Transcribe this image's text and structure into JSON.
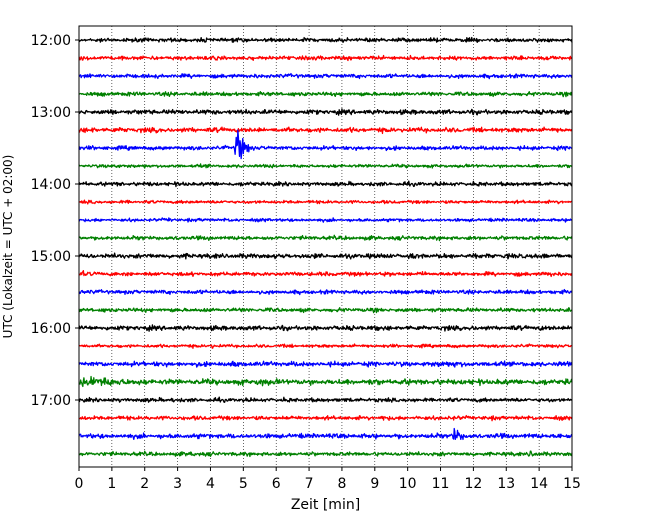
{
  "chart_data": {
    "type": "line",
    "title": "",
    "xlabel": "Zeit  [min]",
    "ylabel": "UTC (Lokalzeit = UTC + 02:00)",
    "xlim": [
      0,
      15
    ],
    "x_ticks": [
      "0",
      "1",
      "2",
      "3",
      "4",
      "5",
      "6",
      "7",
      "8",
      "9",
      "10",
      "11",
      "12",
      "13",
      "14",
      "15"
    ],
    "grid": "vertical dotted",
    "line_interval_minutes": 15,
    "y_ticks": [
      "12:00",
      "13:00",
      "14:00",
      "15:00",
      "16:00",
      "17:00"
    ],
    "color_cycle": [
      "#000000",
      "#ff0000",
      "#0000ff",
      "#008000"
    ],
    "series": [
      {
        "start": "12:00",
        "color": "#000000",
        "amplitude": 2.5,
        "events": []
      },
      {
        "start": "12:15",
        "color": "#ff0000",
        "amplitude": 2.5,
        "events": [
          {
            "at_min": 1.3,
            "duration_min": 0.3,
            "amp": 4
          }
        ]
      },
      {
        "start": "12:30",
        "color": "#0000ff",
        "amplitude": 2.5,
        "events": []
      },
      {
        "start": "12:45",
        "color": "#008000",
        "amplitude": 2.5,
        "events": []
      },
      {
        "start": "13:00",
        "color": "#000000",
        "amplitude": 3,
        "events": []
      },
      {
        "start": "13:15",
        "color": "#ff0000",
        "amplitude": 3,
        "events": [
          {
            "at_min": 0.4,
            "duration_min": 0.8,
            "amp": 4
          }
        ]
      },
      {
        "start": "13:30",
        "color": "#0000ff",
        "amplitude": 2.5,
        "events": [
          {
            "at_min": 4.8,
            "duration_min": 0.5,
            "amp": 30
          }
        ]
      },
      {
        "start": "13:45",
        "color": "#008000",
        "amplitude": 2,
        "events": [
          {
            "at_min": 1.1,
            "duration_min": 0.3,
            "amp": 6
          },
          {
            "at_min": 2.0,
            "duration_min": 0.4,
            "amp": 4
          }
        ]
      },
      {
        "start": "14:00",
        "color": "#000000",
        "amplitude": 2.5,
        "events": []
      },
      {
        "start": "14:15",
        "color": "#ff0000",
        "amplitude": 2,
        "events": [
          {
            "at_min": 7.1,
            "duration_min": 0.3,
            "amp": 3
          }
        ]
      },
      {
        "start": "14:30",
        "color": "#0000ff",
        "amplitude": 2,
        "events": [
          {
            "at_min": 2.7,
            "duration_min": 0.3,
            "amp": 4
          }
        ]
      },
      {
        "start": "14:45",
        "color": "#008000",
        "amplitude": 2.5,
        "events": []
      },
      {
        "start": "15:00",
        "color": "#000000",
        "amplitude": 3,
        "events": []
      },
      {
        "start": "15:15",
        "color": "#ff0000",
        "amplitude": 2.5,
        "events": [
          {
            "at_min": 0.1,
            "duration_min": 0.4,
            "amp": 5
          },
          {
            "at_min": 14.3,
            "duration_min": 0.6,
            "amp": 5
          }
        ]
      },
      {
        "start": "15:30",
        "color": "#0000ff",
        "amplitude": 2.5,
        "events": [
          {
            "at_min": 0.1,
            "duration_min": 0.5,
            "amp": 3
          }
        ]
      },
      {
        "start": "15:45",
        "color": "#008000",
        "amplitude": 2.5,
        "events": []
      },
      {
        "start": "16:00",
        "color": "#000000",
        "amplitude": 3,
        "events": [
          {
            "at_min": 13.2,
            "duration_min": 0.4,
            "amp": 4
          }
        ]
      },
      {
        "start": "16:15",
        "color": "#ff0000",
        "amplitude": 2,
        "events": [
          {
            "at_min": 4.0,
            "duration_min": 0.2,
            "amp": 6
          }
        ]
      },
      {
        "start": "16:30",
        "color": "#0000ff",
        "amplitude": 3,
        "events": [
          {
            "at_min": 4.6,
            "duration_min": 1.5,
            "amp": 5
          },
          {
            "at_min": 11.0,
            "duration_min": 4.0,
            "amp": 5
          }
        ]
      },
      {
        "start": "16:45",
        "color": "#008000",
        "amplitude": 3.5,
        "events": [
          {
            "at_min": 0.3,
            "duration_min": 3.2,
            "amp": 9
          },
          {
            "at_min": 5.5,
            "duration_min": 1.5,
            "amp": 6
          },
          {
            "at_min": 8.7,
            "duration_min": 1.0,
            "amp": 6
          }
        ]
      },
      {
        "start": "17:00",
        "color": "#000000",
        "amplitude": 2.5,
        "events": [
          {
            "at_min": 1.1,
            "duration_min": 0.5,
            "amp": 4
          },
          {
            "at_min": 2.8,
            "duration_min": 0.6,
            "amp": 4
          }
        ]
      },
      {
        "start": "17:15",
        "color": "#ff0000",
        "amplitude": 2.5,
        "events": [
          {
            "at_min": 3.7,
            "duration_min": 0.5,
            "amp": 4
          },
          {
            "at_min": 9.2,
            "duration_min": 0.8,
            "amp": 5
          }
        ]
      },
      {
        "start": "17:30",
        "color": "#0000ff",
        "amplitude": 3,
        "events": [
          {
            "at_min": 11.4,
            "duration_min": 0.8,
            "amp": 10
          },
          {
            "at_min": 14.6,
            "duration_min": 0.4,
            "amp": 6
          }
        ]
      },
      {
        "start": "17:45",
        "color": "#008000",
        "amplitude": 2.5,
        "events": [
          {
            "at_min": 3.4,
            "duration_min": 0.5,
            "amp": 5
          },
          {
            "at_min": 13.7,
            "duration_min": 0.6,
            "amp": 5
          }
        ]
      }
    ]
  }
}
